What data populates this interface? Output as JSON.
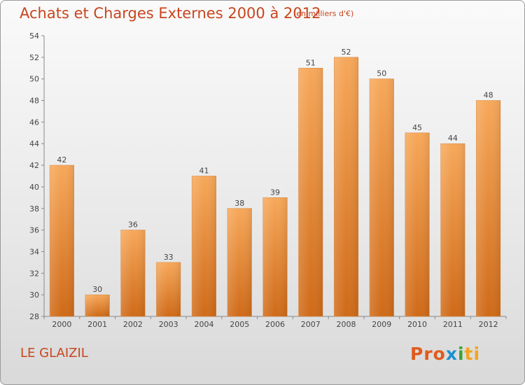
{
  "header": {
    "title": "Achats et Charges Externes 2000 à 2012",
    "subtitle": "(en milliers d'€)"
  },
  "footer": {
    "city": "LE GLAIZIL",
    "logo_parts": [
      "Pro",
      "x",
      "i",
      "ti"
    ]
  },
  "colors": {
    "bar_top": "#f7a85a",
    "bar_bottom": "#cf6a18",
    "title": "#c8451e"
  },
  "chart_data": {
    "type": "bar",
    "title": "Achats et Charges Externes 2000 à 2012",
    "subtitle": "(en milliers d'€)",
    "categories": [
      "2000",
      "2001",
      "2002",
      "2003",
      "2004",
      "2005",
      "2006",
      "2007",
      "2008",
      "2009",
      "2010",
      "2011",
      "2012"
    ],
    "values": [
      42,
      30,
      36,
      33,
      41,
      38,
      39,
      51,
      52,
      50,
      45,
      44,
      48
    ],
    "ylim": [
      28,
      54
    ],
    "yticks": [
      28,
      30,
      32,
      34,
      36,
      38,
      40,
      42,
      44,
      46,
      48,
      50,
      52,
      54
    ],
    "grid": false,
    "xlabel": "",
    "ylabel": ""
  }
}
